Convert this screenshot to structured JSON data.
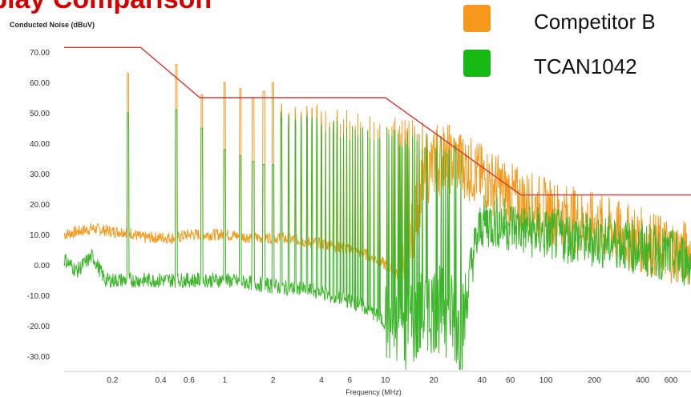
{
  "page": {
    "headline": "...play Comparison"
  },
  "chart_data": {
    "type": "line",
    "title": "",
    "xlabel": "Frequency (MHz)",
    "ylabel": "Conducted Noise (dBuV)",
    "x_scale": "log",
    "xlim": [
      0.1,
      800
    ],
    "ylim": [
      -35,
      75
    ],
    "x_ticks": [
      0.2,
      0.4,
      0.6,
      1,
      2,
      4,
      6,
      10,
      20,
      40,
      60,
      100,
      200,
      400,
      600
    ],
    "x_tick_labels": [
      "0.2",
      "0.4",
      "0.6",
      "1",
      "2",
      "4",
      "6",
      "10",
      "20",
      "40",
      "60",
      "100",
      "200",
      "400",
      "600"
    ],
    "y_ticks": [
      70,
      60,
      50,
      40,
      30,
      20,
      10,
      0,
      -10,
      -20,
      -30
    ],
    "y_tick_labels": [
      "70.00",
      "60.00",
      "50.00",
      "40.00",
      "30.00",
      "20.00",
      "10.00",
      "0.00",
      "-10.00",
      "-20.00",
      "-30.00"
    ],
    "grid": false,
    "legend": "top-right",
    "series": [
      {
        "name": "Competitor B",
        "color": "#f39b1e",
        "x": [
          0.1,
          0.15,
          0.2,
          0.25,
          0.3,
          0.4,
          0.5,
          0.6,
          0.7,
          1,
          1.5,
          2,
          3,
          4,
          5,
          6,
          7,
          8,
          10,
          12,
          14,
          16,
          18,
          20,
          25,
          30,
          35,
          40,
          50,
          60,
          70,
          80,
          100,
          150,
          200,
          300,
          400,
          500,
          600,
          700,
          800
        ],
        "values": [
          10,
          12,
          11,
          11,
          9,
          9,
          9,
          10,
          10,
          10,
          9,
          9,
          8,
          7,
          6,
          5,
          4,
          3,
          0,
          -3,
          5,
          20,
          30,
          33,
          34,
          33,
          31,
          29,
          26,
          23,
          21,
          20,
          18,
          15,
          13,
          10,
          8,
          6,
          5,
          4,
          4
        ]
      },
      {
        "name": "TCAN1042",
        "color": "#3cb52a",
        "x": [
          0.1,
          0.12,
          0.15,
          0.18,
          0.2,
          0.25,
          0.3,
          0.4,
          0.5,
          0.6,
          0.8,
          1,
          1.5,
          2,
          3,
          4,
          5,
          6,
          7,
          8,
          10,
          12,
          14,
          16,
          18,
          20,
          25,
          30,
          35,
          40,
          50,
          60,
          70,
          80,
          100,
          150,
          200,
          300,
          400,
          500,
          600,
          700,
          800
        ],
        "values": [
          2,
          -2,
          3,
          -5,
          -5,
          -5,
          -5,
          -5,
          -5,
          -5,
          -5,
          -5,
          -6,
          -7,
          -8,
          -9,
          -11,
          -12,
          -13,
          -15,
          -19,
          -22,
          -20,
          -18,
          -15,
          -14,
          -16,
          -22,
          3,
          14,
          14,
          13,
          12,
          11,
          10,
          9,
          8,
          7,
          5,
          4,
          3,
          2,
          1
        ]
      },
      {
        "name": "",
        "color": "#d23a3a",
        "x": [
          0.1,
          0.3,
          0.7,
          10,
          70,
          800
        ],
        "values": [
          71.5,
          71.5,
          55,
          55,
          23,
          23
        ]
      }
    ],
    "peaks": [
      {
        "x": 0.25,
        "orange": 63,
        "green": 50
      },
      {
        "x": 0.5,
        "orange": 66,
        "green": 51
      },
      {
        "x": 0.72,
        "orange": 56,
        "green": 45
      },
      {
        "x": 1.0,
        "orange": 60,
        "green": 38
      },
      {
        "x": 1.25,
        "orange": 58,
        "green": 36
      },
      {
        "x": 1.5,
        "orange": 55,
        "green": 34
      },
      {
        "x": 1.75,
        "orange": 57,
        "green": 33
      },
      {
        "x": 2.0,
        "orange": 60,
        "green": 33
      }
    ]
  }
}
